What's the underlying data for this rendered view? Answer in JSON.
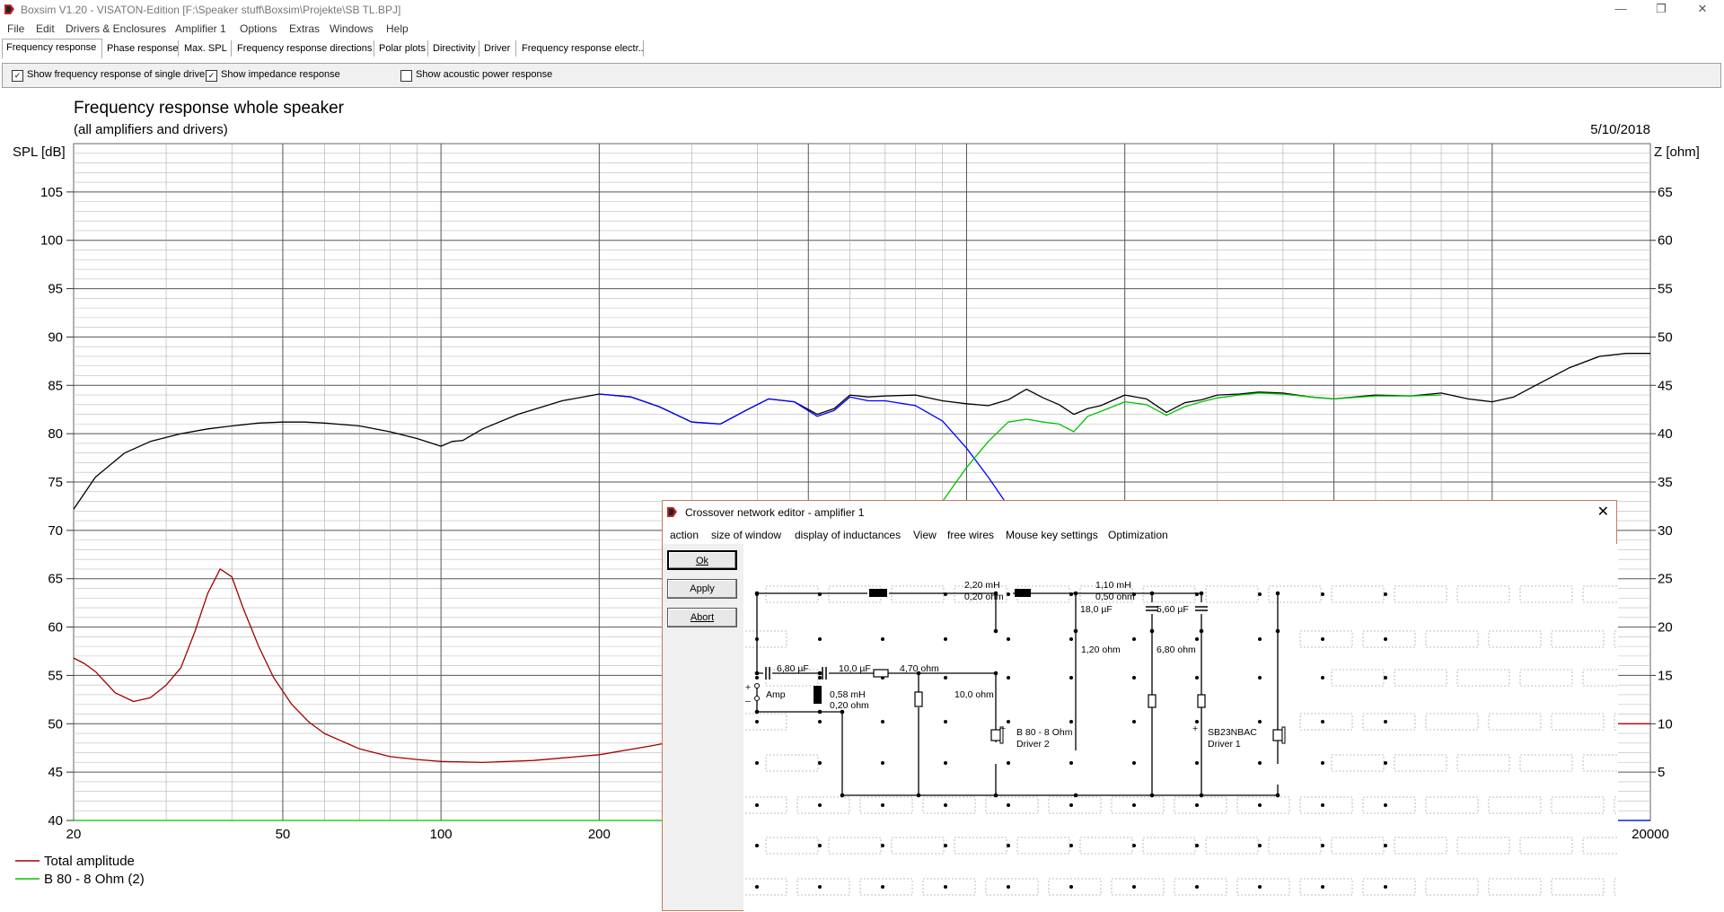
{
  "app": {
    "title": "Boxsim V1.20 - VISATON-Edition [F:\\Speaker stuff\\Boxsim\\Projekte\\SB TL.BPJ]",
    "controls": [
      "—",
      "❐",
      "✕"
    ]
  },
  "menu": [
    "File",
    "Edit",
    "Drivers & Enclosures",
    "Amplifier 1",
    "Options",
    "Extras",
    "Windows",
    "Help"
  ],
  "tabs": [
    "Frequency response",
    "Phase response",
    "Max. SPL",
    "Frequency response directions",
    "Polar plots",
    "Directivity",
    "Driver",
    "Frequency response electr.."
  ],
  "options": {
    "single_drive": {
      "label": "Show frequency response of single drive",
      "checked": true
    },
    "impedance": {
      "label": "Show impedance response",
      "checked": true
    },
    "acoustic_power": {
      "label": "Show acoustic power response",
      "checked": false
    }
  },
  "chart_data": {
    "type": "line",
    "title": "Frequency response whole speaker",
    "subtitle": "(all amplifiers and drivers)",
    "date": "5/10/2018",
    "ylabel": "SPL [dB]",
    "y2label": "Z [ohm]",
    "xscale": "log",
    "xlim": [
      20,
      20000
    ],
    "ylim": [
      40,
      110
    ],
    "y2lim": [
      0,
      70
    ],
    "x_ticks": [
      "20",
      "50",
      "100",
      "200",
      "20000"
    ],
    "x_tick_values": [
      20,
      50,
      100,
      200,
      20000
    ],
    "y_ticks": [
      "40",
      "45",
      "50",
      "55",
      "60",
      "65",
      "70",
      "75",
      "80",
      "85",
      "90",
      "95",
      "100",
      "105"
    ],
    "y2_ticks": [
      "5",
      "10",
      "15",
      "20",
      "25",
      "30",
      "35",
      "40",
      "45",
      "50",
      "55",
      "60",
      "65"
    ],
    "legend": [
      "Total amplitude",
      "B 80 - 8 Ohm (2)"
    ],
    "series": [
      {
        "name": "Total amplitude",
        "color": "#000000",
        "x": [
          20,
          22,
          25,
          28,
          32,
          36,
          40,
          45,
          50,
          55,
          60,
          70,
          80,
          90,
          100,
          105,
          110,
          120,
          140,
          170,
          200,
          230,
          260,
          300,
          340,
          380,
          420,
          470,
          520,
          560,
          600,
          650,
          700,
          800,
          900,
          1000,
          1100,
          1200,
          1300,
          1400,
          1500,
          1600,
          1700,
          1800,
          2000,
          2200,
          2400,
          2600,
          2800,
          3000,
          3300,
          3600,
          4000,
          4500,
          5000,
          6000,
          7000,
          8000,
          9000,
          10000,
          11000,
          12000,
          14000,
          16000,
          18000,
          20000
        ],
        "y": [
          72.2,
          75.5,
          78,
          79.2,
          80,
          80.5,
          80.8,
          81.1,
          81.2,
          81.2,
          81.1,
          80.8,
          80.2,
          79.5,
          78.7,
          79.2,
          79.3,
          80.5,
          82,
          83.4,
          84.1,
          83.8,
          82.8,
          81.2,
          81,
          82.4,
          83.6,
          83.3,
          82,
          82.6,
          84,
          83.8,
          83.9,
          84,
          83.4,
          83.1,
          82.9,
          83.5,
          84.6,
          83.7,
          83,
          82,
          82.6,
          82.9,
          84,
          83.6,
          82.2,
          83.2,
          83.5,
          84,
          84.1,
          84.3,
          84.2,
          83.8,
          83.6,
          84,
          83.9,
          84.2,
          83.6,
          83.3,
          83.8,
          84.9,
          86.8,
          88,
          88.3,
          88.3
        ]
      },
      {
        "name": "B 80 - 8 Ohm (2)",
        "color": "#0000ff",
        "x": [
          200,
          230,
          260,
          300,
          340,
          380,
          420,
          470,
          520,
          560,
          600,
          650,
          700,
          800,
          900,
          1000,
          1100,
          1200
        ],
        "y": [
          84.1,
          83.8,
          82.8,
          81.2,
          81,
          82.4,
          83.6,
          83.3,
          81.8,
          82.4,
          83.8,
          83.4,
          83.4,
          82.9,
          81.3,
          78.5,
          75.5,
          72.5
        ]
      },
      {
        "name": "SB23NBAC",
        "color": "#00c000",
        "x": [
          600,
          700,
          800,
          900,
          1000,
          1100,
          1200,
          1300,
          1400,
          1500,
          1600,
          1700,
          1800,
          2000,
          2200,
          2400,
          2600,
          2800,
          3000,
          3300,
          3600,
          4000,
          4500,
          5000,
          6000,
          7000,
          8000
        ],
        "y": [
          40,
          60,
          68,
          73,
          76.5,
          79.2,
          81.2,
          81.5,
          81.2,
          81,
          80.2,
          81.8,
          82.3,
          83.3,
          83,
          81.9,
          82.8,
          83.3,
          83.7,
          84,
          84.2,
          84.1,
          83.8,
          83.6,
          83.9,
          83.9,
          84
        ]
      },
      {
        "name": "Impedance",
        "color": "#a00000",
        "x": [
          20,
          21,
          22,
          24,
          26,
          28,
          30,
          32,
          34,
          36,
          38,
          40,
          42,
          45,
          48,
          52,
          56,
          60,
          70,
          80,
          90,
          100,
          120,
          150,
          200,
          250,
          300
        ],
        "y": [
          16.8,
          16.2,
          15.4,
          13.2,
          12.3,
          12.7,
          14,
          15.8,
          19.5,
          23.5,
          26,
          25.2,
          22,
          18,
          14.8,
          12,
          10.2,
          9,
          7.4,
          6.6,
          6.3,
          6.1,
          6,
          6.2,
          6.8,
          7.7,
          8.5
        ]
      }
    ]
  },
  "crossover": {
    "title": "Crossover network editor - amplifier 1",
    "menu": [
      "action",
      "size of window",
      "display of inductances",
      "View",
      "free wires",
      "Mouse key settings",
      "Optimization"
    ],
    "buttons": {
      "ok": "Ok",
      "apply": "Apply",
      "abort": "Abort"
    },
    "labels": {
      "l1": "2,20 mH",
      "l1r": "0,20 ohm",
      "l2": "1,10 mH",
      "l2r": "0,50 ohm",
      "c1": "18,0 µF",
      "c2": "5,60 µF",
      "r1": "1,20 ohm",
      "r2": "6,80 ohm",
      "c3": "6,80 µF",
      "c4": "10,0 µF",
      "r3": "4,70 ohm",
      "l3": "0,58 mH",
      "l3r": "0,20 ohm",
      "r4": "10,0 ohm",
      "amp": "Amp",
      "d2name": "B 80 - 8 Ohm",
      "d2": "Driver 2",
      "d1name": "SB23NBAC",
      "d1": "Driver 1",
      "plus1": "+",
      "minus1": "–",
      "plus2": "+",
      "plus3": "+"
    }
  }
}
